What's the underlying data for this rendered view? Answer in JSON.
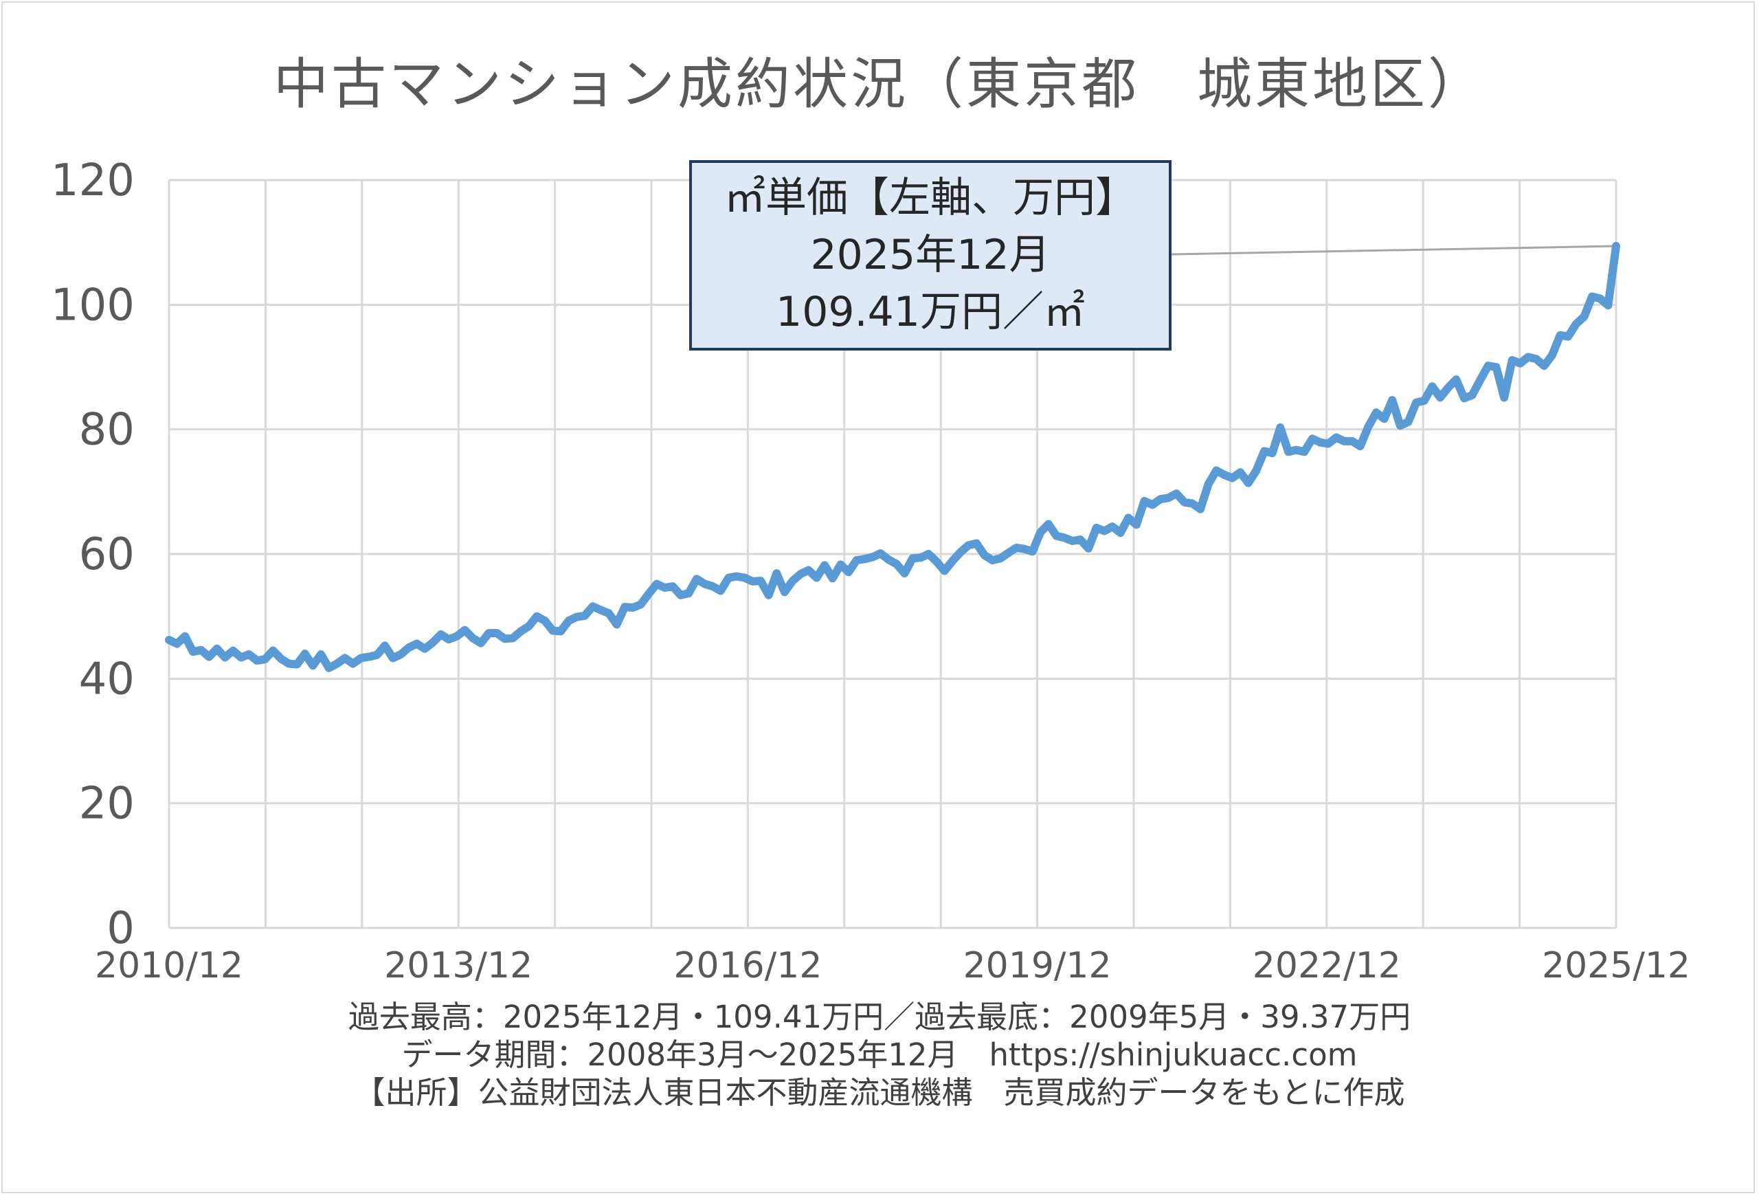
{
  "colors": {
    "line": "#5b9bd5",
    "grid": "#d9d9d9",
    "callout_bg": "#dfe9f5",
    "callout_border": "#1f3864",
    "leader": "#a6a6a6"
  },
  "callout": {
    "line1": "㎡単価【左軸、万円】",
    "line2": "2025年12月",
    "line3": "109.41万円／㎡"
  },
  "footnotes": {
    "line1": "過去最高：2025年12月・109.41万円／過去最底：2009年5月・39.37万円",
    "line2": "データ期間：2008年3月～2025年12月　https://shinjukuacc.com",
    "line3": "【出所】公益財団法人東日本不動産流通機構　売買成約データをもとに作成"
  },
  "chart_data": {
    "type": "line",
    "title": "中古マンション成約状況（東京都　城東地区）",
    "xlabel": "",
    "ylabel": "",
    "x_tick_labels": [
      "2010/12",
      "2013/12",
      "2016/12",
      "2019/12",
      "2022/12",
      "2025/12"
    ],
    "y_tick_labels": [
      "0",
      "20",
      "40",
      "60",
      "80",
      "100",
      "120"
    ],
    "ylim": [
      0,
      120
    ],
    "grid": true,
    "legend": "none",
    "x_start": "2010/12",
    "x_end": "2025/12",
    "series": [
      {
        "values": [
          46.2,
          45.6,
          46.8,
          44.3,
          44.6,
          43.5,
          44.8,
          43.4,
          44.5,
          43.4,
          43.9,
          42.9,
          43.1,
          44.5,
          43.2,
          42.4,
          42.3,
          44.0,
          42.1,
          43.9,
          41.7,
          42.4,
          43.3,
          42.4,
          43.3,
          43.5,
          43.8,
          45.3,
          43.3,
          43.9,
          45.0,
          45.6,
          44.8,
          45.8,
          47.1,
          46.3,
          46.8,
          47.8,
          46.5,
          45.7,
          47.3,
          47.3,
          46.4,
          46.5,
          47.6,
          48.4,
          50.0,
          49.3,
          47.7,
          47.6,
          49.3,
          49.9,
          50.1,
          51.6,
          51.0,
          50.5,
          48.7,
          51.5,
          51.4,
          51.9,
          53.6,
          55.2,
          54.6,
          54.8,
          53.4,
          53.7,
          56.0,
          55.2,
          54.8,
          54.1,
          56.2,
          56.4,
          56.2,
          55.6,
          55.7,
          53.4,
          56.9,
          53.9,
          55.7,
          56.8,
          57.4,
          56.2,
          58.2,
          56.1,
          58.3,
          57.1,
          59.0,
          59.2,
          59.5,
          60.1,
          59.1,
          58.4,
          56.9,
          59.3,
          59.4,
          60.0,
          58.8,
          57.3,
          58.9,
          60.3,
          61.4,
          61.7,
          59.8,
          59.0,
          59.3,
          60.2,
          61.0,
          60.8,
          60.4,
          63.5,
          64.8,
          62.9,
          62.6,
          62.1,
          62.3,
          60.9,
          64.2,
          63.7,
          64.4,
          63.4,
          65.8,
          64.7,
          68.5,
          67.9,
          68.8,
          69.0,
          69.7,
          68.3,
          68.1,
          67.2,
          71.2,
          73.4,
          72.7,
          72.2,
          73.1,
          71.4,
          73.4,
          76.5,
          76.2,
          80.3,
          76.4,
          76.7,
          76.4,
          78.5,
          77.9,
          77.7,
          78.7,
          78.1,
          78.1,
          77.3,
          80.4,
          82.7,
          81.7,
          84.7,
          80.6,
          81.2,
          84.3,
          84.6,
          86.9,
          85.1,
          86.7,
          88.0,
          85.0,
          85.5,
          87.9,
          90.2,
          90.0,
          85.1,
          91.1,
          90.6,
          91.6,
          91.3,
          90.2,
          91.9,
          95.1,
          94.9,
          96.9,
          98.1,
          101.3,
          101.0,
          99.9,
          109.41
        ]
      }
    ]
  }
}
